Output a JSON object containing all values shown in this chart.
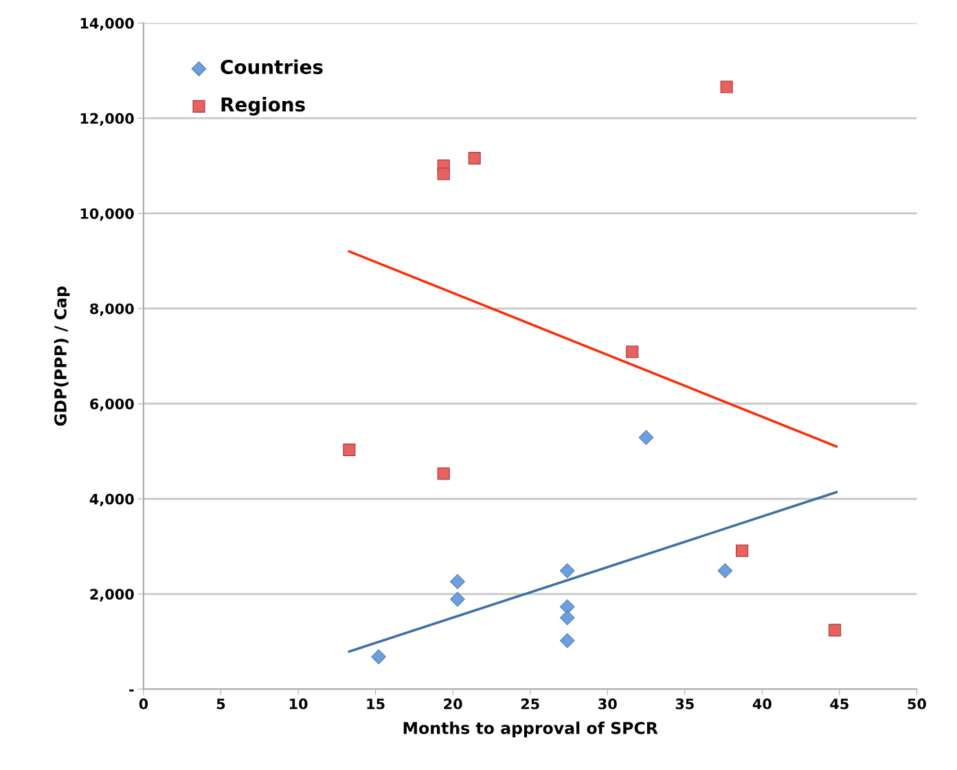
{
  "chart_data": {
    "type": "scatter",
    "xlabel": "Months to approval of SPCR",
    "ylabel": "GDP(PPP) / Cap",
    "xlim": [
      0,
      50
    ],
    "xticks": [
      0,
      5,
      10,
      15,
      20,
      25,
      30,
      35,
      40,
      45,
      50
    ],
    "ylim": [
      0,
      14000
    ],
    "yticks": [
      {
        "value": 0,
        "label": "-"
      },
      {
        "value": 2000,
        "label": "2,000"
      },
      {
        "value": 4000,
        "label": "4,000"
      },
      {
        "value": 6000,
        "label": "6,000"
      },
      {
        "value": 8000,
        "label": "8,000"
      },
      {
        "value": 10000,
        "label": "10,000"
      },
      {
        "value": 12000,
        "label": "12,000"
      },
      {
        "value": 14000,
        "label": "14,000"
      }
    ],
    "grid": "y",
    "legend": "top left",
    "series": [
      {
        "name": "Countries",
        "marker": "diamond",
        "color": "#6d9fdc",
        "x": [
          15.2,
          20.3,
          20.3,
          27.4,
          27.4,
          27.4,
          27.4,
          32.5,
          37.6
        ],
        "values": [
          680,
          2260,
          1890,
          2490,
          1730,
          1500,
          1020,
          5290,
          2490
        ]
      },
      {
        "name": "Regions",
        "marker": "square",
        "color": "#e8625f",
        "x": [
          13.3,
          19.4,
          19.4,
          21.4,
          19.4,
          31.6,
          37.7,
          38.7,
          44.7
        ],
        "values": [
          5030,
          11000,
          10830,
          11160,
          4530,
          7090,
          12660,
          2910,
          1240
        ]
      },
      {
        "type": "line",
        "color": "#ff2a00",
        "x": [
          13.3,
          44.8
        ],
        "values": [
          9200,
          5100
        ]
      },
      {
        "type": "line",
        "color": "#3f6fa8",
        "x": [
          13.3,
          44.8
        ],
        "values": [
          790,
          4140
        ]
      }
    ]
  }
}
